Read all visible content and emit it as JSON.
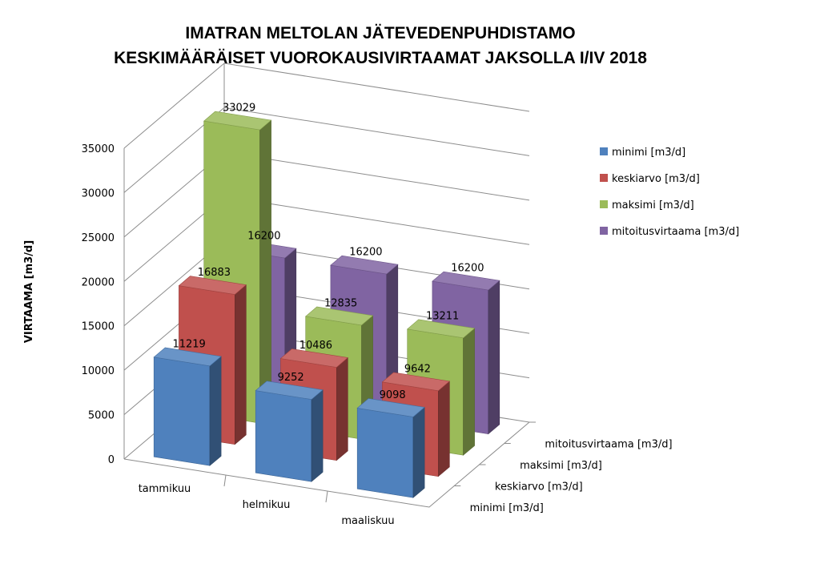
{
  "chart_data": {
    "type": "bar",
    "title_lines": [
      "IMATRAN MELTOLAN JÄTEVEDENPUHDISTAMO",
      "KESKIMÄÄRÄISET VUOROKAUSIVIRTAAMAT JAKSOLLA I/IV 2018"
    ],
    "ylabel": "VIRTAAMA [m3/d]",
    "ylim": [
      0,
      35000
    ],
    "yticks": [
      0,
      5000,
      10000,
      15000,
      20000,
      25000,
      30000,
      35000
    ],
    "categories": [
      "tammikuu",
      "helmikuu",
      "maaliskuu"
    ],
    "series": [
      {
        "name": "minimi [m3/d]",
        "color": "#4f81bd",
        "values": [
          11219,
          9252,
          9098
        ]
      },
      {
        "name": "keskiarvo [m3/d]",
        "color": "#c0504d",
        "values": [
          16883,
          10486,
          9642
        ]
      },
      {
        "name": "maksimi [m3/d]",
        "color": "#9bbb59",
        "values": [
          33029,
          12835,
          13211
        ]
      },
      {
        "name": "mitoitusvirtaama [m3/d]",
        "color": "#8064a2",
        "values": [
          16200,
          16200,
          16200
        ]
      }
    ],
    "grid": true,
    "legend_position": "right",
    "style": "3d-column"
  }
}
